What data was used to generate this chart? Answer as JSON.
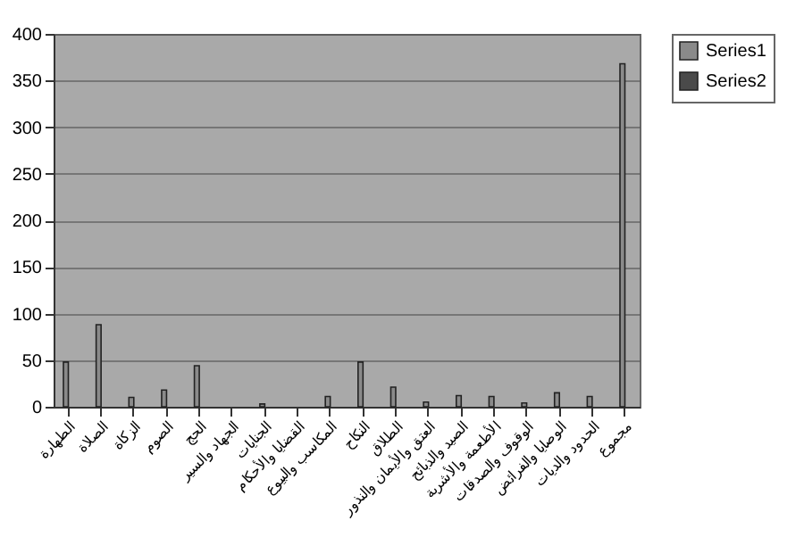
{
  "chart_data": {
    "type": "bar",
    "categories": [
      "الطهارة",
      "الصلاة",
      "الزكاة",
      "الصوم",
      "الحج",
      "الجهاد والسير",
      "الجنايات",
      "القضايا والأحكام",
      "المكاسب والبيوع",
      "النكاح",
      "الطلاق",
      "العتق والأيمان والنذور",
      "الصيد والذبائح",
      "الأطعمة والأشربة",
      "الوقوف والصدقات",
      "الوصايا والفرائض",
      "الحدود والديات",
      "مجموع"
    ],
    "series": [
      {
        "name": "Series1",
        "color": "#8a8a8a",
        "values": [
          48,
          88,
          10,
          18,
          44,
          0,
          3,
          0,
          11,
          48,
          21,
          5,
          12,
          11,
          4,
          15,
          11,
          368
        ]
      },
      {
        "name": "Series2",
        "color": "#4a4a4a",
        "values": [
          null,
          null,
          null,
          null,
          null,
          null,
          null,
          null,
          null,
          null,
          null,
          null,
          null,
          null,
          null,
          null,
          null,
          null
        ]
      }
    ],
    "ylim": [
      0,
      400
    ],
    "yticks": [
      0,
      50,
      100,
      150,
      200,
      250,
      300,
      350,
      400
    ],
    "grid": "y",
    "legend": "right"
  }
}
